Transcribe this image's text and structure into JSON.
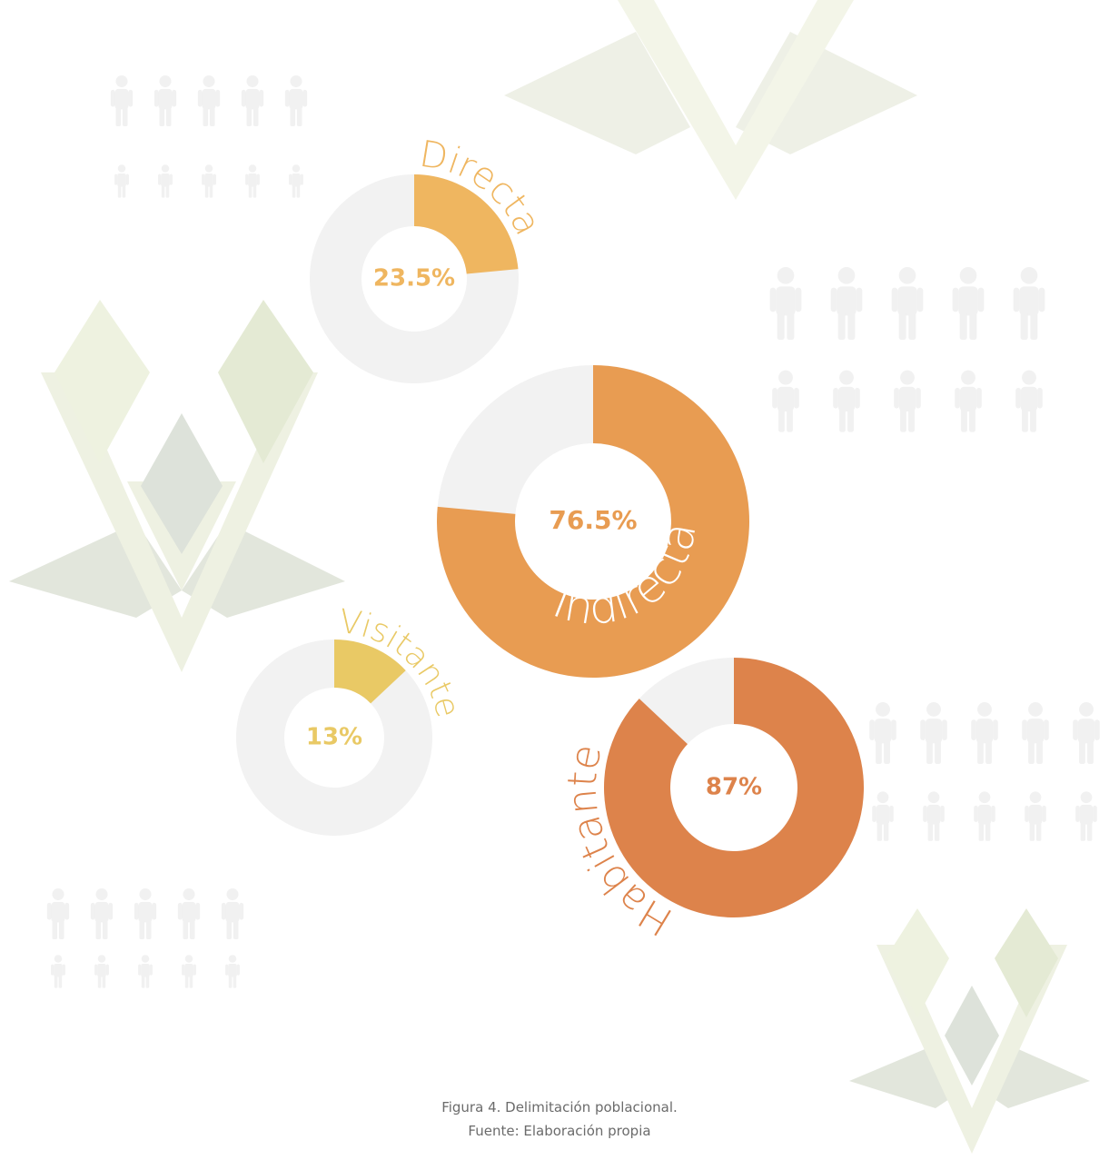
{
  "chart_data": [
    {
      "type": "donut",
      "label": "Directa",
      "value": 23.5,
      "value_label": "23.5%",
      "color": "#efb660",
      "track_color": "#f2f2f2"
    },
    {
      "type": "donut",
      "label": "Indirecta",
      "value": 76.5,
      "value_label": "76.5%",
      "color": "#e89c52",
      "track_color": "#f2f2f2"
    },
    {
      "type": "donut",
      "label": "Visitante",
      "value": 13,
      "value_label": "13%",
      "color": "#e9c965",
      "track_color": "#f2f2f2"
    },
    {
      "type": "donut",
      "label": "Habitante",
      "value": 87,
      "value_label": "87%",
      "color": "#dd834b",
      "track_color": "#f2f2f2"
    }
  ],
  "caption": {
    "figure": "Figura 4. Delimitación poblacional.",
    "source": "Fuente: Elaboración propia"
  }
}
